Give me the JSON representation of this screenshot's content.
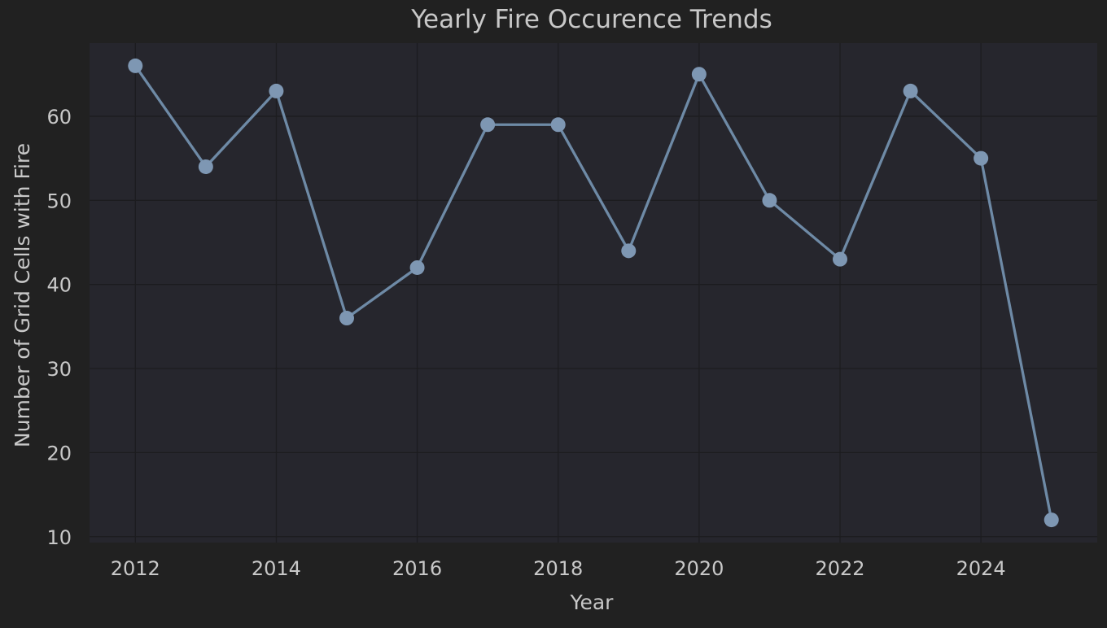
{
  "chart_data": {
    "type": "line",
    "title": "Yearly Fire Occurence Trends",
    "xlabel": "Year",
    "ylabel": "Number of Grid Cells with Fire",
    "x": [
      2012,
      2013,
      2014,
      2015,
      2016,
      2017,
      2018,
      2019,
      2020,
      2021,
      2022,
      2023,
      2024,
      2025
    ],
    "series": [
      {
        "values": [
          66,
          54,
          63,
          36,
          42,
          59,
          59,
          44,
          65,
          50,
          43,
          63,
          55,
          12
        ]
      }
    ],
    "x_ticks": [
      "2012",
      "2014",
      "2016",
      "2018",
      "2020",
      "2022",
      "2024"
    ],
    "y_ticks": [
      "10",
      "20",
      "30",
      "40",
      "50",
      "60"
    ],
    "xlim": [
      2011.35,
      2025.65
    ],
    "ylim": [
      9.3,
      68.7
    ],
    "grid": true,
    "legend": "none",
    "colors": {
      "line": "#6e8aa6",
      "marker": "#7e97b3",
      "plot_background": "#26262d",
      "figure_background": "#212121",
      "text": "#c8c8c8",
      "grid": "#1c1c1f"
    }
  }
}
